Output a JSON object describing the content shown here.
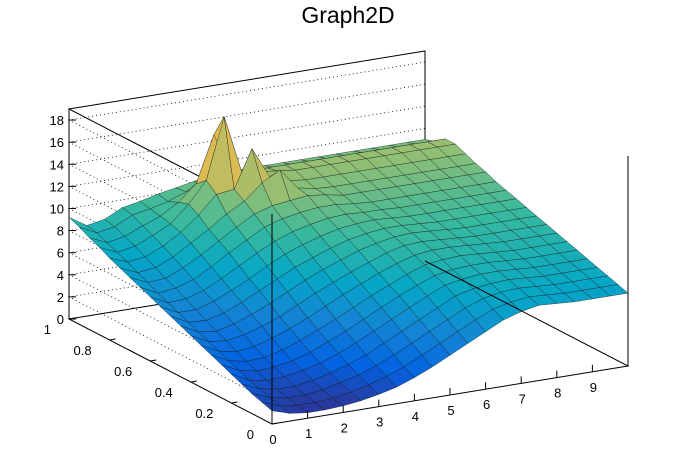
{
  "chart_data": {
    "type": "surface",
    "title": "Graph2D",
    "xlim": [
      0,
      10
    ],
    "ylim": [
      0,
      1
    ],
    "zlim": [
      0,
      19
    ],
    "x_ticks": [
      "0",
      "1",
      "2",
      "3",
      "4",
      "5",
      "6",
      "7",
      "8",
      "9"
    ],
    "y_ticks": [
      "0",
      "0.2",
      "0.4",
      "0.6",
      "0.8",
      "1"
    ],
    "z_ticks": [
      "0",
      "2",
      "4",
      "6",
      "8",
      "10",
      "12",
      "14",
      "16",
      "18"
    ],
    "palette": [
      "#352a87",
      "#0363e1",
      "#1485d4",
      "#06a7c6",
      "#38b99e",
      "#92bf73",
      "#d9ba56",
      "#fcce2e",
      "#f9fb0e"
    ],
    "grid": true,
    "x_grid": [
      0,
      0.5,
      1,
      1.5,
      2,
      2.5,
      3,
      3.5,
      4,
      4.5,
      5,
      5.5,
      6,
      6.5,
      7,
      7.5,
      8,
      8.5,
      9,
      9.5,
      10
    ],
    "y_grid": [
      1.0,
      0.95,
      0.9,
      0.85,
      0.8,
      0.75,
      0.7,
      0.65,
      0.6,
      0.55,
      0.5,
      0.45,
      0.4,
      0.35,
      0.3,
      0.25,
      0.2,
      0.15,
      0.1,
      0.05,
      0.0
    ],
    "z": [
      [
        9.2,
        8.2,
        8.5,
        9.3,
        9.6,
        10.0,
        10.3,
        10.6,
        11.0,
        11.0,
        11.0,
        11.0,
        11.0,
        11.0,
        11.0,
        11.0,
        11.0,
        11.0,
        11.0,
        11.0,
        11.0
      ],
      [
        8.8,
        8.0,
        8.3,
        9.1,
        9.4,
        9.8,
        10.4,
        10.9,
        11.3,
        11.3,
        11.3,
        11.3,
        11.3,
        11.3,
        11.3,
        11.3,
        11.3,
        11.3,
        11.3,
        11.3,
        11.3
      ],
      [
        8.3,
        7.6,
        7.9,
        8.6,
        9.2,
        10.2,
        11.6,
        15.8,
        12.0,
        12.0,
        12.0,
        12.0,
        12.0,
        12.0,
        12.0,
        12.0,
        12.0,
        12.0,
        12.0,
        12.0,
        12.0
      ],
      [
        7.9,
        7.2,
        7.5,
        8.2,
        9.0,
        10.5,
        12.4,
        17.9,
        12.6,
        12.4,
        12.2,
        12.0,
        12.0,
        12.0,
        12.0,
        12.0,
        12.0,
        12.0,
        12.0,
        12.0,
        12.0
      ],
      [
        7.4,
        6.8,
        7.0,
        7.7,
        8.7,
        10.0,
        11.6,
        11.8,
        15.2,
        12.4,
        11.8,
        11.6,
        11.6,
        11.6,
        11.6,
        11.6,
        11.6,
        11.6,
        11.6,
        11.6,
        11.6
      ],
      [
        7.0,
        6.3,
        6.5,
        7.2,
        8.2,
        9.2,
        10.3,
        11.2,
        12.6,
        13.5,
        11.6,
        11.3,
        11.2,
        11.2,
        11.2,
        11.2,
        11.2,
        11.2,
        11.2,
        11.2,
        11.2
      ],
      [
        6.6,
        5.9,
        6.0,
        6.7,
        7.6,
        8.6,
        9.6,
        10.5,
        11.0,
        11.2,
        11.4,
        11.2,
        10.9,
        10.9,
        10.9,
        10.9,
        10.9,
        10.9,
        10.9,
        10.9,
        10.9
      ],
      [
        6.2,
        5.4,
        5.6,
        6.1,
        7.0,
        8.0,
        8.9,
        9.8,
        10.3,
        10.6,
        10.8,
        10.8,
        10.6,
        10.5,
        10.5,
        10.5,
        10.5,
        10.5,
        10.5,
        10.5,
        10.5
      ],
      [
        5.8,
        5.0,
        5.1,
        5.6,
        6.4,
        7.3,
        8.2,
        9.0,
        9.6,
        10.0,
        10.3,
        10.4,
        10.3,
        10.3,
        10.2,
        10.2,
        10.2,
        10.2,
        10.2,
        10.2,
        10.2
      ],
      [
        5.4,
        4.6,
        4.6,
        5.1,
        5.8,
        6.6,
        7.5,
        8.3,
        8.9,
        9.4,
        9.8,
        10.0,
        10.1,
        10.0,
        9.9,
        9.9,
        9.9,
        9.9,
        9.9,
        9.9,
        9.9
      ],
      [
        5.0,
        4.2,
        4.1,
        4.5,
        5.2,
        6.0,
        6.8,
        7.6,
        8.2,
        8.8,
        9.3,
        9.6,
        9.8,
        9.8,
        9.7,
        9.6,
        9.6,
        9.6,
        9.6,
        9.6,
        9.6
      ],
      [
        4.6,
        3.8,
        3.6,
        4.0,
        4.6,
        5.3,
        6.1,
        6.9,
        7.6,
        8.2,
        8.8,
        9.2,
        9.5,
        9.6,
        9.5,
        9.4,
        9.3,
        9.3,
        9.3,
        9.3,
        9.3
      ],
      [
        4.2,
        3.4,
        3.2,
        3.5,
        4.0,
        4.6,
        5.4,
        6.2,
        6.9,
        7.6,
        8.2,
        8.8,
        9.2,
        9.3,
        9.2,
        9.1,
        9.0,
        9.0,
        9.0,
        9.0,
        9.0
      ],
      [
        3.8,
        3.0,
        2.7,
        2.9,
        3.4,
        4.0,
        4.7,
        5.5,
        6.3,
        7.0,
        7.7,
        8.3,
        8.8,
        9.0,
        9.0,
        8.9,
        8.8,
        8.7,
        8.7,
        8.7,
        8.7
      ],
      [
        3.4,
        2.6,
        2.3,
        2.4,
        2.8,
        3.4,
        4.1,
        4.8,
        5.6,
        6.4,
        7.1,
        7.8,
        8.4,
        8.6,
        8.7,
        8.6,
        8.5,
        8.4,
        8.4,
        8.4,
        8.4
      ],
      [
        3.0,
        2.2,
        1.9,
        2.0,
        2.3,
        2.8,
        3.5,
        4.2,
        5.0,
        5.8,
        6.6,
        7.3,
        7.9,
        8.2,
        8.3,
        8.3,
        8.2,
        8.1,
        8.1,
        8.1,
        8.1
      ],
      [
        2.6,
        1.8,
        1.5,
        1.6,
        1.9,
        2.3,
        2.9,
        3.6,
        4.4,
        5.2,
        6.0,
        6.8,
        7.5,
        7.8,
        8.0,
        8.0,
        7.9,
        7.8,
        7.8,
        7.8,
        7.8
      ],
      [
        2.2,
        1.5,
        1.2,
        1.2,
        1.5,
        1.9,
        2.4,
        3.0,
        3.8,
        4.6,
        5.4,
        6.2,
        7.0,
        7.4,
        7.6,
        7.7,
        7.6,
        7.5,
        7.5,
        7.5,
        7.5
      ],
      [
        1.8,
        1.2,
        0.9,
        0.9,
        1.1,
        1.5,
        1.9,
        2.5,
        3.2,
        4.0,
        4.8,
        5.6,
        6.4,
        7.0,
        7.3,
        7.4,
        7.3,
        7.2,
        7.2,
        7.2,
        7.2
      ],
      [
        1.5,
        0.9,
        0.7,
        0.7,
        0.8,
        1.1,
        1.5,
        2.0,
        2.6,
        3.4,
        4.2,
        5.0,
        5.8,
        6.5,
        6.9,
        7.1,
        7.0,
        6.9,
        6.9,
        6.9,
        6.9
      ],
      [
        1.2,
        0.7,
        0.5,
        0.5,
        0.6,
        0.8,
        1.1,
        1.5,
        2.1,
        2.8,
        3.6,
        4.4,
        5.2,
        6.0,
        6.5,
        6.8,
        6.7,
        6.6,
        6.6,
        6.6,
        6.6
      ]
    ]
  }
}
